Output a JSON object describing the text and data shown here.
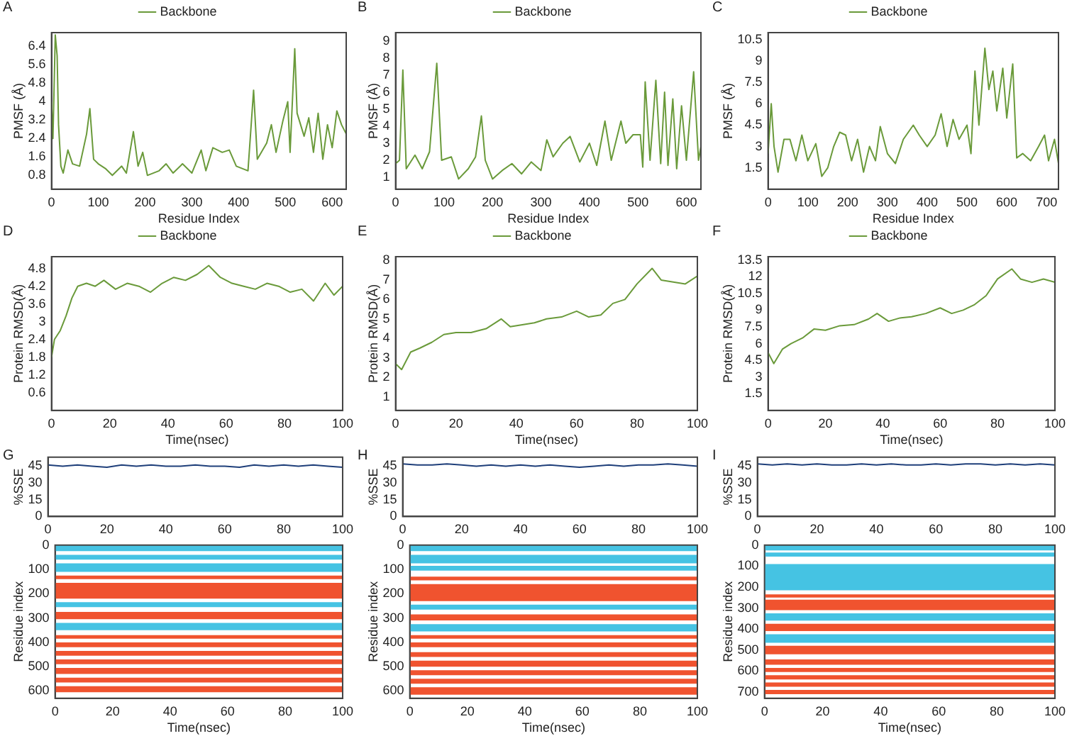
{
  "chart_data": [
    {
      "type": "line",
      "title": "A",
      "xlabel": "Residue Index",
      "ylabel": "PMSF (Å)",
      "legend": "top",
      "marker": "none",
      "xlim": [
        0,
        630
      ],
      "xticks": [
        0,
        100,
        200,
        300,
        400,
        500,
        600
      ],
      "ylim": [
        0.2,
        7
      ],
      "yticks": [
        0.8,
        1.6,
        2.4,
        3.2,
        4.0,
        4.8,
        5.6,
        6.4
      ],
      "series": [
        {
          "name": "Backbone",
          "color": "#6a9a3a",
          "x": [
            0,
            3,
            8,
            12,
            15,
            20,
            25,
            35,
            45,
            60,
            75,
            82,
            90,
            100,
            115,
            130,
            150,
            160,
            175,
            185,
            195,
            205,
            230,
            245,
            260,
            280,
            300,
            320,
            330,
            345,
            365,
            380,
            395,
            420,
            432,
            440,
            460,
            470,
            480,
            495,
            505,
            510,
            520,
            525,
            540,
            550,
            560,
            570,
            580,
            590,
            600,
            610,
            620,
            630
          ],
          "values": [
            4.0,
            2.4,
            6.9,
            6.0,
            3.0,
            1.2,
            0.9,
            1.9,
            1.3,
            1.2,
            2.6,
            3.7,
            1.5,
            1.3,
            1.1,
            0.8,
            1.2,
            0.9,
            2.7,
            1.2,
            1.8,
            0.8,
            1.0,
            1.3,
            0.9,
            1.3,
            0.9,
            1.9,
            1.0,
            2.0,
            1.8,
            1.9,
            1.2,
            1.0,
            4.5,
            1.5,
            2.2,
            3.0,
            1.8,
            3.2,
            4.0,
            1.8,
            6.3,
            3.5,
            2.5,
            3.3,
            1.8,
            3.5,
            1.5,
            3.0,
            2.0,
            3.6,
            3.0,
            2.6
          ]
        }
      ]
    },
    {
      "type": "line",
      "title": "B",
      "xlabel": "Residue Index",
      "ylabel": "PMSF (Å)",
      "legend": "top",
      "marker": "none",
      "xlim": [
        0,
        630
      ],
      "xticks": [
        0,
        100,
        200,
        300,
        400,
        500,
        600
      ],
      "ylim": [
        0.3,
        9.5
      ],
      "yticks": [
        1,
        2,
        3,
        4,
        5,
        6,
        7,
        8,
        9
      ],
      "series": [
        {
          "name": "Backbone",
          "color": "#6a9a3a",
          "x": [
            0,
            8,
            15,
            22,
            40,
            55,
            70,
            85,
            95,
            115,
            130,
            150,
            165,
            177,
            185,
            200,
            220,
            240,
            260,
            280,
            300,
            312,
            325,
            345,
            360,
            380,
            400,
            415,
            432,
            445,
            465,
            475,
            490,
            505,
            510,
            515,
            525,
            537,
            547,
            555,
            562,
            572,
            580,
            590,
            600,
            615,
            625,
            630
          ],
          "values": [
            1.8,
            2.0,
            7.3,
            1.5,
            2.3,
            1.5,
            2.5,
            7.7,
            2.0,
            2.2,
            0.9,
            1.5,
            2.2,
            4.6,
            2.0,
            0.9,
            1.4,
            1.8,
            1.2,
            1.9,
            1.4,
            3.2,
            2.2,
            3.0,
            3.4,
            1.9,
            3.0,
            1.7,
            4.3,
            2.0,
            4.3,
            3.0,
            3.5,
            3.5,
            1.6,
            6.6,
            2.0,
            6.7,
            1.8,
            6.0,
            1.7,
            5.6,
            1.5,
            5.2,
            2.0,
            7.2,
            2.0,
            2.8
          ]
        }
      ]
    },
    {
      "type": "line",
      "title": "C",
      "xlabel": "Residue Index",
      "ylabel": "PMSF (Å)",
      "legend": "top",
      "marker": "none",
      "xlim": [
        0,
        730
      ],
      "xticks": [
        0,
        100,
        200,
        300,
        400,
        500,
        600,
        700
      ],
      "ylim": [
        0,
        11
      ],
      "yticks": [
        1.5,
        3.0,
        4.5,
        6.0,
        7.5,
        9.0,
        10.5
      ],
      "series": [
        {
          "name": "Backbone",
          "color": "#6a9a3a",
          "x": [
            0,
            8,
            15,
            25,
            40,
            55,
            70,
            85,
            100,
            120,
            135,
            150,
            165,
            180,
            195,
            210,
            225,
            240,
            255,
            270,
            282,
            300,
            320,
            340,
            365,
            380,
            400,
            420,
            435,
            450,
            465,
            480,
            500,
            510,
            520,
            530,
            545,
            555,
            565,
            575,
            590,
            600,
            615,
            625,
            640,
            660,
            680,
            695,
            705,
            720,
            730
          ],
          "values": [
            2.5,
            6.0,
            3.0,
            1.2,
            3.5,
            3.5,
            2.0,
            3.8,
            2.0,
            3.2,
            0.9,
            1.5,
            3.0,
            4.0,
            3.8,
            2.0,
            3.5,
            1.2,
            3.0,
            2.0,
            4.4,
            2.5,
            1.8,
            3.5,
            4.5,
            3.8,
            3.0,
            3.8,
            5.3,
            3.0,
            4.9,
            3.5,
            4.5,
            2.5,
            8.3,
            4.5,
            9.9,
            7.0,
            8.3,
            5.5,
            8.5,
            5.0,
            8.8,
            2.2,
            2.5,
            2.0,
            3.0,
            3.8,
            2.0,
            3.5,
            1.8
          ]
        }
      ]
    },
    {
      "type": "line",
      "title": "D",
      "xlabel": "Time(nsec)",
      "ylabel": "Protein RMSD(Å)",
      "legend": "top",
      "marker": "none",
      "xlim": [
        0,
        100
      ],
      "xticks": [
        0,
        20,
        40,
        60,
        80,
        100
      ],
      "ylim": [
        0,
        5.2
      ],
      "yticks": [
        0.6,
        1.2,
        1.8,
        2.4,
        3.0,
        3.6,
        4.2,
        4.8
      ],
      "series": [
        {
          "name": "Backbone",
          "color": "#6a9a3a",
          "x": [
            0,
            1,
            3,
            5,
            7,
            9,
            12,
            15,
            18,
            22,
            26,
            30,
            34,
            38,
            42,
            46,
            50,
            54,
            58,
            62,
            66,
            70,
            74,
            78,
            82,
            86,
            90,
            94,
            97,
            100
          ],
          "values": [
            1.8,
            2.4,
            2.7,
            3.2,
            3.8,
            4.2,
            4.3,
            4.2,
            4.4,
            4.1,
            4.3,
            4.2,
            4.0,
            4.3,
            4.5,
            4.4,
            4.6,
            4.9,
            4.5,
            4.3,
            4.2,
            4.1,
            4.3,
            4.2,
            4.0,
            4.1,
            3.7,
            4.3,
            3.9,
            4.2
          ]
        }
      ]
    },
    {
      "type": "line",
      "title": "E",
      "xlabel": "Time(nsec)",
      "ylabel": "Protein RMSD(Å)",
      "legend": "top",
      "marker": "none",
      "xlim": [
        0,
        100
      ],
      "xticks": [
        0,
        20,
        40,
        60,
        80,
        100
      ],
      "ylim": [
        0.3,
        8.2
      ],
      "yticks": [
        1,
        2,
        3,
        4,
        5,
        6,
        7,
        8
      ],
      "series": [
        {
          "name": "Backbone",
          "color": "#6a9a3a",
          "x": [
            0,
            2,
            5,
            8,
            12,
            16,
            20,
            25,
            30,
            35,
            38,
            42,
            46,
            50,
            55,
            60,
            64,
            68,
            72,
            76,
            80,
            85,
            88,
            92,
            96,
            100
          ],
          "values": [
            2.7,
            2.4,
            3.3,
            3.5,
            3.8,
            4.2,
            4.3,
            4.3,
            4.5,
            5.0,
            4.6,
            4.7,
            4.8,
            5.0,
            5.1,
            5.4,
            5.1,
            5.2,
            5.8,
            6.0,
            6.8,
            7.6,
            7.0,
            6.9,
            6.8,
            7.2
          ]
        }
      ]
    },
    {
      "type": "line",
      "title": "F",
      "xlabel": "Time(nsec)",
      "ylabel": "Protein RMSD(Å)",
      "legend": "top",
      "marker": "none",
      "xlim": [
        0,
        100
      ],
      "xticks": [
        0,
        20,
        40,
        60,
        80,
        100
      ],
      "ylim": [
        0,
        13.8
      ],
      "yticks": [
        1.5,
        3.0,
        4.5,
        6.0,
        7.5,
        9.0,
        10.5,
        12.0,
        13.5
      ],
      "series": [
        {
          "name": "Backbone",
          "color": "#6a9a3a",
          "x": [
            0,
            2,
            5,
            8,
            12,
            16,
            20,
            25,
            30,
            35,
            38,
            42,
            46,
            50,
            55,
            60,
            64,
            68,
            72,
            76,
            80,
            85,
            88,
            92,
            96,
            100
          ],
          "values": [
            5.2,
            4.2,
            5.5,
            6.0,
            6.5,
            7.3,
            7.2,
            7.6,
            7.7,
            8.2,
            8.7,
            8.0,
            8.3,
            8.4,
            8.7,
            9.2,
            8.7,
            9.0,
            9.5,
            10.3,
            11.8,
            12.7,
            11.8,
            11.5,
            11.8,
            11.5
          ]
        }
      ]
    },
    {
      "type": "line",
      "title": "G",
      "ylabel": "%SSE",
      "marker": "none",
      "xlim": [
        0,
        100
      ],
      "xticks": [
        0,
        20,
        40,
        60,
        80,
        100
      ],
      "ylim": [
        0,
        53
      ],
      "yticks": [
        0,
        15,
        30,
        45
      ],
      "series": [
        {
          "color": "#1f3f7a",
          "x": [
            0,
            5,
            10,
            15,
            20,
            25,
            30,
            35,
            40,
            45,
            50,
            55,
            60,
            65,
            70,
            75,
            80,
            85,
            90,
            95,
            100
          ],
          "values": [
            46,
            45,
            46,
            45,
            44,
            46,
            45,
            46,
            45,
            45,
            46,
            45,
            45,
            44,
            46,
            45,
            46,
            45,
            46,
            45,
            44
          ]
        }
      ]
    },
    {
      "type": "line",
      "title": "H",
      "ylabel": "%SSE",
      "marker": "none",
      "xlim": [
        0,
        100
      ],
      "xticks": [
        0,
        20,
        40,
        60,
        80,
        100
      ],
      "ylim": [
        0,
        53
      ],
      "yticks": [
        0,
        15,
        30,
        45
      ],
      "series": [
        {
          "color": "#1f3f7a",
          "x": [
            0,
            5,
            10,
            15,
            20,
            25,
            30,
            35,
            40,
            45,
            50,
            55,
            60,
            65,
            70,
            75,
            80,
            85,
            90,
            95,
            100
          ],
          "values": [
            47,
            46,
            46,
            47,
            46,
            45,
            46,
            45,
            46,
            45,
            46,
            45,
            44,
            45,
            46,
            45,
            46,
            46,
            47,
            46,
            45
          ]
        }
      ]
    },
    {
      "type": "line",
      "title": "I",
      "ylabel": "%SSE",
      "marker": "none",
      "xlim": [
        0,
        100
      ],
      "xticks": [
        0,
        20,
        40,
        60,
        80,
        100
      ],
      "ylim": [
        0,
        53
      ],
      "yticks": [
        0,
        15,
        30,
        45
      ],
      "series": [
        {
          "color": "#1f3f7a",
          "x": [
            0,
            5,
            10,
            15,
            20,
            25,
            30,
            35,
            40,
            45,
            50,
            55,
            60,
            65,
            70,
            75,
            80,
            85,
            90,
            95,
            100
          ],
          "values": [
            47,
            46,
            47,
            46,
            47,
            46,
            46,
            47,
            46,
            47,
            46,
            46,
            47,
            46,
            47,
            47,
            46,
            47,
            46,
            47,
            46
          ]
        }
      ]
    },
    {
      "type": "line",
      "xlabel": "Time(nsec)",
      "ylabel": "Residue index",
      "xlim": [
        0,
        100
      ],
      "xticks": [
        0,
        20,
        40,
        60,
        80,
        100
      ],
      "ylim": [
        630,
        0
      ],
      "yticks": [
        0,
        100,
        200,
        300,
        400,
        500,
        600
      ],
      "bands": [
        {
          "axis": "y",
          "from": 0,
          "to": 25,
          "color": "#45c3e3"
        },
        {
          "axis": "y",
          "from": 40,
          "to": 60,
          "color": "#45c3e3"
        },
        {
          "axis": "y",
          "from": 75,
          "to": 110,
          "color": "#45c3e3"
        },
        {
          "axis": "y",
          "from": 125,
          "to": 140,
          "color": "#f0532f"
        },
        {
          "axis": "y",
          "from": 155,
          "to": 220,
          "color": "#f0532f"
        },
        {
          "axis": "y",
          "from": 235,
          "to": 255,
          "color": "#45c3e3"
        },
        {
          "axis": "y",
          "from": 275,
          "to": 305,
          "color": "#f0532f"
        },
        {
          "axis": "y",
          "from": 320,
          "to": 350,
          "color": "#45c3e3"
        },
        {
          "axis": "y",
          "from": 370,
          "to": 385,
          "color": "#f0532f"
        },
        {
          "axis": "y",
          "from": 400,
          "to": 420,
          "color": "#f0532f"
        },
        {
          "axis": "y",
          "from": 435,
          "to": 455,
          "color": "#f0532f"
        },
        {
          "axis": "y",
          "from": 470,
          "to": 490,
          "color": "#f0532f"
        },
        {
          "axis": "y",
          "from": 505,
          "to": 530,
          "color": "#f0532f"
        },
        {
          "axis": "y",
          "from": 545,
          "to": 565,
          "color": "#f0532f"
        },
        {
          "axis": "y",
          "from": 580,
          "to": 605,
          "color": "#f0532f"
        }
      ]
    },
    {
      "type": "line",
      "xlabel": "Time(nsec)",
      "ylabel": "Residue index",
      "xlim": [
        0,
        100
      ],
      "xticks": [
        0,
        20,
        40,
        60,
        80,
        100
      ],
      "ylim": [
        630,
        0
      ],
      "yticks": [
        0,
        100,
        200,
        300,
        400,
        500,
        600
      ],
      "bands": [
        {
          "axis": "y",
          "from": 0,
          "to": 25,
          "color": "#45c3e3"
        },
        {
          "axis": "y",
          "from": 40,
          "to": 75,
          "color": "#45c3e3"
        },
        {
          "axis": "y",
          "from": 85,
          "to": 105,
          "color": "#45c3e3"
        },
        {
          "axis": "y",
          "from": 130,
          "to": 145,
          "color": "#f0532f"
        },
        {
          "axis": "y",
          "from": 160,
          "to": 230,
          "color": "#f0532f"
        },
        {
          "axis": "y",
          "from": 245,
          "to": 265,
          "color": "#45c3e3"
        },
        {
          "axis": "y",
          "from": 285,
          "to": 310,
          "color": "#f0532f"
        },
        {
          "axis": "y",
          "from": 325,
          "to": 355,
          "color": "#45c3e3"
        },
        {
          "axis": "y",
          "from": 370,
          "to": 385,
          "color": "#f0532f"
        },
        {
          "axis": "y",
          "from": 400,
          "to": 420,
          "color": "#f0532f"
        },
        {
          "axis": "y",
          "from": 440,
          "to": 460,
          "color": "#f0532f"
        },
        {
          "axis": "y",
          "from": 475,
          "to": 500,
          "color": "#f0532f"
        },
        {
          "axis": "y",
          "from": 515,
          "to": 535,
          "color": "#f0532f"
        },
        {
          "axis": "y",
          "from": 550,
          "to": 570,
          "color": "#f0532f"
        },
        {
          "axis": "y",
          "from": 585,
          "to": 615,
          "color": "#f0532f"
        }
      ]
    },
    {
      "type": "line",
      "xlabel": "Time(nsec)",
      "ylabel": "Residue index",
      "xlim": [
        0,
        100
      ],
      "xticks": [
        0,
        20,
        40,
        60,
        80,
        100
      ],
      "ylim": [
        730,
        0
      ],
      "yticks": [
        0,
        100,
        200,
        300,
        400,
        500,
        600,
        700
      ],
      "bands": [
        {
          "axis": "y",
          "from": 0,
          "to": 25,
          "color": "#45c3e3"
        },
        {
          "axis": "y",
          "from": 35,
          "to": 55,
          "color": "#45c3e3"
        },
        {
          "axis": "y",
          "from": 90,
          "to": 215,
          "color": "#45c3e3"
        },
        {
          "axis": "y",
          "from": 235,
          "to": 250,
          "color": "#f0532f"
        },
        {
          "axis": "y",
          "from": 260,
          "to": 310,
          "color": "#f0532f"
        },
        {
          "axis": "y",
          "from": 325,
          "to": 360,
          "color": "#45c3e3"
        },
        {
          "axis": "y",
          "from": 375,
          "to": 410,
          "color": "#f0532f"
        },
        {
          "axis": "y",
          "from": 425,
          "to": 465,
          "color": "#45c3e3"
        },
        {
          "axis": "y",
          "from": 480,
          "to": 520,
          "color": "#f0532f"
        },
        {
          "axis": "y",
          "from": 545,
          "to": 570,
          "color": "#f0532f"
        },
        {
          "axis": "y",
          "from": 585,
          "to": 605,
          "color": "#f0532f"
        },
        {
          "axis": "y",
          "from": 620,
          "to": 640,
          "color": "#f0532f"
        },
        {
          "axis": "y",
          "from": 655,
          "to": 675,
          "color": "#f0532f"
        },
        {
          "axis": "y",
          "from": 690,
          "to": 710,
          "color": "#f0532f"
        }
      ]
    }
  ]
}
